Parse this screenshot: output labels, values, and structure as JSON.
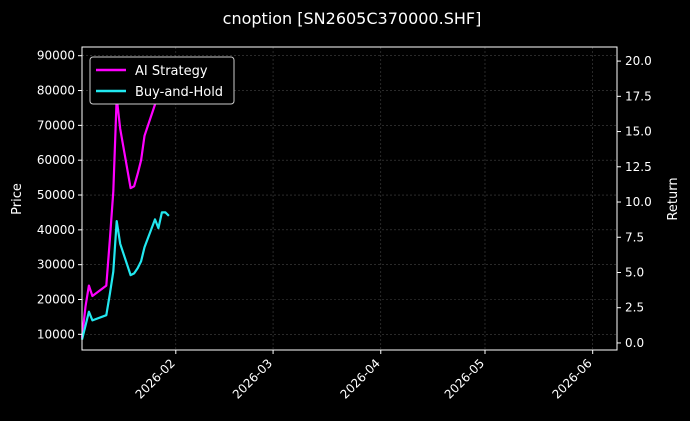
{
  "chart_data": {
    "type": "line",
    "title": "cnoption [SN2605C370000.SHF]",
    "xlabel": "",
    "ylabel_left": "Price",
    "ylabel_right": "Return",
    "x_ticks": [
      "2026-02",
      "2026-03",
      "2026-04",
      "2026-05",
      "2026-06"
    ],
    "xlim": [
      "2026-01-05",
      "2026-06-08"
    ],
    "ylim_left": [
      5500,
      92500
    ],
    "yticks_left": [
      10000,
      20000,
      30000,
      40000,
      50000,
      60000,
      70000,
      80000,
      90000
    ],
    "ylim_right": [
      -0.5,
      21.0
    ],
    "yticks_right": [
      "0.0",
      "2.5",
      "5.0",
      "7.5",
      "10.0",
      "12.5",
      "15.0",
      "17.5",
      "20.0"
    ],
    "grid": true,
    "legend_position": "top-left",
    "colors": {
      "ai_strategy": "#ff00ff",
      "buy_and_hold": "#22e8f0",
      "background": "#000000",
      "grid": "#444444"
    },
    "series": [
      {
        "name": "AI Strategy",
        "axis": "left",
        "x": [
          "2026-01-05",
          "2026-01-06",
          "2026-01-07",
          "2026-01-08",
          "2026-01-12",
          "2026-01-13",
          "2026-01-14",
          "2026-01-15",
          "2026-01-16",
          "2026-01-19",
          "2026-01-20",
          "2026-01-21",
          "2026-01-22",
          "2026-01-23",
          "2026-01-26",
          "2026-01-27",
          "2026-01-28",
          "2026-01-29",
          "2026-01-30"
        ],
        "values": [
          9000,
          18000,
          24000,
          21000,
          24000,
          37000,
          51000,
          78000,
          69000,
          52000,
          52500,
          56000,
          60000,
          67000,
          76000,
          80000,
          87000,
          85000,
          87000
        ]
      },
      {
        "name": "Buy-and-Hold",
        "axis": "left",
        "x": [
          "2026-01-05",
          "2026-01-06",
          "2026-01-07",
          "2026-01-08",
          "2026-01-12",
          "2026-01-13",
          "2026-01-14",
          "2026-01-15",
          "2026-01-16",
          "2026-01-19",
          "2026-01-20",
          "2026-01-21",
          "2026-01-22",
          "2026-01-23",
          "2026-01-26",
          "2026-01-27",
          "2026-01-28",
          "2026-01-29",
          "2026-01-30"
        ],
        "values": [
          8500,
          12500,
          16500,
          14000,
          15500,
          21500,
          28000,
          42500,
          36000,
          27000,
          27500,
          29000,
          31000,
          35000,
          43000,
          40500,
          45000,
          45000,
          44000
        ]
      }
    ]
  }
}
